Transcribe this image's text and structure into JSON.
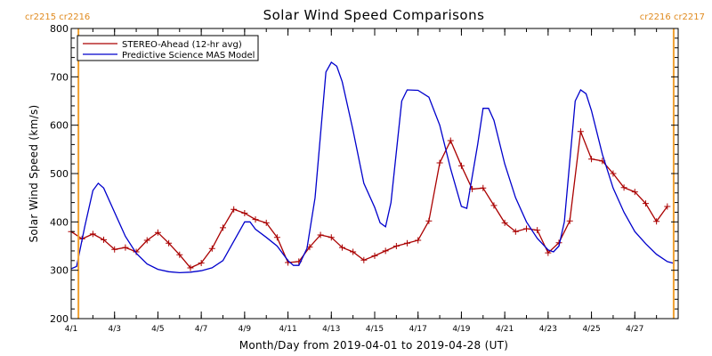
{
  "chart_data": {
    "type": "line",
    "title": "Solar Wind Speed Comparisons",
    "xlabel": "Month/Day from 2019-04-01 to 2019-04-28 (UT)",
    "ylabel": "Solar Wind Speed (km/s)",
    "xlim": [
      "2019-04-01",
      "2019-04-29T00:00"
    ],
    "ylim": [
      200,
      800
    ],
    "yticks": [
      200,
      300,
      400,
      500,
      600,
      700,
      800
    ],
    "xticks": [
      {
        "date": "2019-04-01",
        "label": "4/1"
      },
      {
        "date": "2019-04-03",
        "label": "4/3"
      },
      {
        "date": "2019-04-05",
        "label": "4/5"
      },
      {
        "date": "2019-04-07",
        "label": "4/7"
      },
      {
        "date": "2019-04-09",
        "label": "4/9"
      },
      {
        "date": "2019-04-11",
        "label": "4/11"
      },
      {
        "date": "2019-04-13",
        "label": "4/13"
      },
      {
        "date": "2019-04-15",
        "label": "4/15"
      },
      {
        "date": "2019-04-17",
        "label": "4/17"
      },
      {
        "date": "2019-04-19",
        "label": "4/19"
      },
      {
        "date": "2019-04-21",
        "label": "4/21"
      },
      {
        "date": "2019-04-23",
        "label": "4/23"
      },
      {
        "date": "2019-04-25",
        "label": "4/25"
      },
      {
        "date": "2019-04-27",
        "label": "4/27"
      }
    ],
    "carrington_markers": [
      {
        "date": "2019-04-01T08:00",
        "labels": [
          "cr2215",
          "cr2216"
        ],
        "side": "left",
        "color": "#f0a030"
      },
      {
        "date": "2019-04-28T19:00",
        "labels": [
          "cr2216",
          "cr2217"
        ],
        "side": "right",
        "color": "#f0a030"
      }
    ],
    "legend": {
      "position": "top-left"
    },
    "series": [
      {
        "name": "STEREO-Ahead (12-hr avg)",
        "color": "#aa0000",
        "marker": "plus",
        "points": [
          [
            "2019-04-01T00:00",
            380
          ],
          [
            "2019-04-01T12:00",
            365
          ],
          [
            "2019-04-02T00:00",
            375
          ],
          [
            "2019-04-02T12:00",
            363
          ],
          [
            "2019-04-03T00:00",
            343
          ],
          [
            "2019-04-03T12:00",
            347
          ],
          [
            "2019-04-04T00:00",
            338
          ],
          [
            "2019-04-04T12:00",
            362
          ],
          [
            "2019-04-05T00:00",
            378
          ],
          [
            "2019-04-05T12:00",
            356
          ],
          [
            "2019-04-06T00:00",
            332
          ],
          [
            "2019-04-06T12:00",
            305
          ],
          [
            "2019-04-07T00:00",
            315
          ],
          [
            "2019-04-07T12:00",
            345
          ],
          [
            "2019-04-08T00:00",
            388
          ],
          [
            "2019-04-08T12:00",
            426
          ],
          [
            "2019-04-09T00:00",
            418
          ],
          [
            "2019-04-09T12:00",
            405
          ],
          [
            "2019-04-10T00:00",
            398
          ],
          [
            "2019-04-10T12:00",
            368
          ],
          [
            "2019-04-11T00:00",
            316
          ],
          [
            "2019-04-11T12:00",
            318
          ],
          [
            "2019-04-12T00:00",
            348
          ],
          [
            "2019-04-12T12:00",
            373
          ],
          [
            "2019-04-13T00:00",
            368
          ],
          [
            "2019-04-13T12:00",
            347
          ],
          [
            "2019-04-14T00:00",
            338
          ],
          [
            "2019-04-14T12:00",
            321
          ],
          [
            "2019-04-15T00:00",
            330
          ],
          [
            "2019-04-15T12:00",
            340
          ],
          [
            "2019-04-16T00:00",
            350
          ],
          [
            "2019-04-16T12:00",
            356
          ],
          [
            "2019-04-17T00:00",
            362
          ],
          [
            "2019-04-17T12:00",
            402
          ],
          [
            "2019-04-18T00:00",
            522
          ],
          [
            "2019-04-18T12:00",
            568
          ],
          [
            "2019-04-19T00:00",
            516
          ],
          [
            "2019-04-19T12:00",
            468
          ],
          [
            "2019-04-20T00:00",
            470
          ],
          [
            "2019-04-20T12:00",
            434
          ],
          [
            "2019-04-21T00:00",
            398
          ],
          [
            "2019-04-21T12:00",
            380
          ],
          [
            "2019-04-22T00:00",
            386
          ],
          [
            "2019-04-22T12:00",
            383
          ],
          [
            "2019-04-23T00:00",
            336
          ],
          [
            "2019-04-23T12:00",
            357
          ],
          [
            "2019-04-24T00:00",
            402
          ],
          [
            "2019-04-24T12:00",
            587
          ],
          [
            "2019-04-25T00:00",
            530
          ],
          [
            "2019-04-25T12:00",
            526
          ],
          [
            "2019-04-26T00:00",
            500
          ],
          [
            "2019-04-26T12:00",
            471
          ],
          [
            "2019-04-27T00:00",
            462
          ],
          [
            "2019-04-27T12:00",
            438
          ],
          [
            "2019-04-28T00:00",
            401
          ],
          [
            "2019-04-28T12:00",
            432
          ]
        ]
      },
      {
        "name": "Predictive Science MAS Model",
        "color": "#0000cc",
        "marker": "none",
        "points": [
          [
            "2019-04-01T00:00",
            303
          ],
          [
            "2019-04-01T06:00",
            308
          ],
          [
            "2019-04-01T15:00",
            390
          ],
          [
            "2019-04-02T00:00",
            465
          ],
          [
            "2019-04-02T06:00",
            480
          ],
          [
            "2019-04-02T12:00",
            470
          ],
          [
            "2019-04-03T00:00",
            420
          ],
          [
            "2019-04-03T12:00",
            370
          ],
          [
            "2019-04-04T00:00",
            335
          ],
          [
            "2019-04-04T12:00",
            313
          ],
          [
            "2019-04-05T00:00",
            302
          ],
          [
            "2019-04-05T12:00",
            297
          ],
          [
            "2019-04-06T00:00",
            295
          ],
          [
            "2019-04-06T12:00",
            296
          ],
          [
            "2019-04-07T00:00",
            299
          ],
          [
            "2019-04-07T12:00",
            305
          ],
          [
            "2019-04-08T00:00",
            320
          ],
          [
            "2019-04-08T12:00",
            360
          ],
          [
            "2019-04-09T00:00",
            400
          ],
          [
            "2019-04-09T06:00",
            400
          ],
          [
            "2019-04-09T12:00",
            385
          ],
          [
            "2019-04-10T00:00",
            368
          ],
          [
            "2019-04-10T12:00",
            350
          ],
          [
            "2019-04-11T00:00",
            320
          ],
          [
            "2019-04-11T06:00",
            310
          ],
          [
            "2019-04-11T12:00",
            310
          ],
          [
            "2019-04-11T21:00",
            345
          ],
          [
            "2019-04-12T06:00",
            450
          ],
          [
            "2019-04-12T18:00",
            710
          ],
          [
            "2019-04-13T00:00",
            730
          ],
          [
            "2019-04-13T06:00",
            722
          ],
          [
            "2019-04-13T12:00",
            690
          ],
          [
            "2019-04-14T00:00",
            590
          ],
          [
            "2019-04-14T12:00",
            480
          ],
          [
            "2019-04-15T00:00",
            430
          ],
          [
            "2019-04-15T06:00",
            398
          ],
          [
            "2019-04-15T12:00",
            390
          ],
          [
            "2019-04-15T18:00",
            440
          ],
          [
            "2019-04-16T06:00",
            650
          ],
          [
            "2019-04-16T12:00",
            673
          ],
          [
            "2019-04-17T00:00",
            672
          ],
          [
            "2019-04-17T12:00",
            658
          ],
          [
            "2019-04-18T00:00",
            600
          ],
          [
            "2019-04-18T12:00",
            510
          ],
          [
            "2019-04-19T00:00",
            432
          ],
          [
            "2019-04-19T06:00",
            428
          ],
          [
            "2019-04-19T18:00",
            560
          ],
          [
            "2019-04-20T00:00",
            635
          ],
          [
            "2019-04-20T06:00",
            635
          ],
          [
            "2019-04-20T12:00",
            610
          ],
          [
            "2019-04-21T00:00",
            520
          ],
          [
            "2019-04-21T12:00",
            450
          ],
          [
            "2019-04-22T00:00",
            400
          ],
          [
            "2019-04-22T12:00",
            366
          ],
          [
            "2019-04-23T00:00",
            342
          ],
          [
            "2019-04-23T06:00",
            338
          ],
          [
            "2019-04-23T12:00",
            350
          ],
          [
            "2019-04-23T18:00",
            400
          ],
          [
            "2019-04-24T06:00",
            650
          ],
          [
            "2019-04-24T12:00",
            673
          ],
          [
            "2019-04-24T18:00",
            665
          ],
          [
            "2019-04-25T00:00",
            630
          ],
          [
            "2019-04-25T12:00",
            540
          ],
          [
            "2019-04-26T00:00",
            470
          ],
          [
            "2019-04-26T12:00",
            420
          ],
          [
            "2019-04-27T00:00",
            380
          ],
          [
            "2019-04-27T12:00",
            355
          ],
          [
            "2019-04-28T00:00",
            333
          ],
          [
            "2019-04-28T12:00",
            318
          ],
          [
            "2019-04-28T20:00",
            314
          ]
        ]
      }
    ]
  }
}
